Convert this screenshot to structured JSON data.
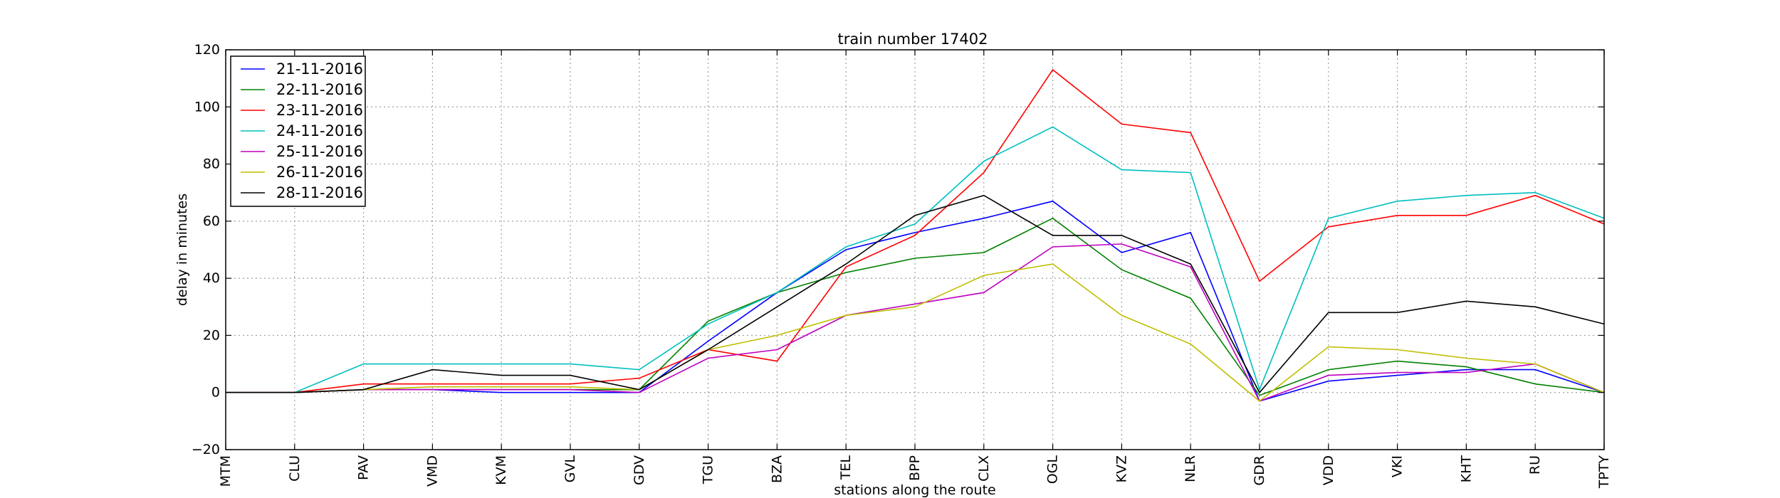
{
  "chart_data": {
    "type": "line",
    "title": "train number 17402",
    "xlabel": "stations along the route",
    "ylabel": "delay in minutes",
    "categories": [
      "MTM",
      "CLU",
      "PAV",
      "VMD",
      "KVM",
      "GVL",
      "GDV",
      "TGU",
      "BZA",
      "TEL",
      "BPP",
      "CLX",
      "OGL",
      "KVZ",
      "NLR",
      "GDR",
      "VDD",
      "VKI",
      "KHT",
      "RU",
      "TPTY"
    ],
    "ylim": [
      -20,
      120
    ],
    "yticks": [
      -20,
      0,
      20,
      40,
      60,
      80,
      100,
      120
    ],
    "ytick_labels": [
      "−20",
      "0",
      "20",
      "40",
      "60",
      "80",
      "100",
      "120"
    ],
    "grid": true,
    "legend_position": "top-left",
    "series": [
      {
        "name": "21-11-2016",
        "color": "#0000ff",
        "values": [
          0,
          0,
          1,
          1,
          0,
          0,
          0,
          18,
          35,
          50,
          56,
          61,
          67,
          49,
          56,
          -3,
          4,
          6,
          8,
          8,
          0
        ]
      },
      {
        "name": "22-11-2016",
        "color": "#008000",
        "values": [
          0,
          0,
          1,
          1,
          1,
          1,
          1,
          25,
          35,
          42,
          47,
          49,
          61,
          43,
          33,
          -1,
          8,
          11,
          9,
          3,
          0
        ]
      },
      {
        "name": "23-11-2016",
        "color": "#ff0000",
        "values": [
          0,
          0,
          3,
          3,
          3,
          3,
          5,
          15,
          11,
          44,
          55,
          77,
          113,
          94,
          91,
          39,
          58,
          62,
          62,
          69,
          59
        ]
      },
      {
        "name": "24-11-2016",
        "color": "#00bfbf",
        "values": [
          0,
          0,
          10,
          10,
          10,
          10,
          8,
          24,
          35,
          51,
          59,
          81,
          93,
          78,
          77,
          1,
          61,
          67,
          69,
          70,
          61
        ]
      },
      {
        "name": "25-11-2016",
        "color": "#bf00bf",
        "values": [
          0,
          0,
          1,
          1,
          1,
          1,
          0,
          12,
          15,
          27,
          31,
          35,
          51,
          52,
          44,
          -3,
          6,
          7,
          7,
          10,
          0
        ]
      },
      {
        "name": "26-11-2016",
        "color": "#bfbf00",
        "values": [
          0,
          0,
          1,
          2,
          2,
          2,
          1,
          15,
          20,
          27,
          30,
          41,
          45,
          27,
          17,
          -3,
          16,
          15,
          12,
          10,
          0
        ]
      },
      {
        "name": "28-11-2016",
        "color": "#000000",
        "values": [
          0,
          0,
          1,
          8,
          6,
          6,
          1,
          15,
          30,
          45,
          62,
          69,
          55,
          55,
          45,
          0,
          28,
          28,
          32,
          30,
          24
        ]
      }
    ]
  }
}
